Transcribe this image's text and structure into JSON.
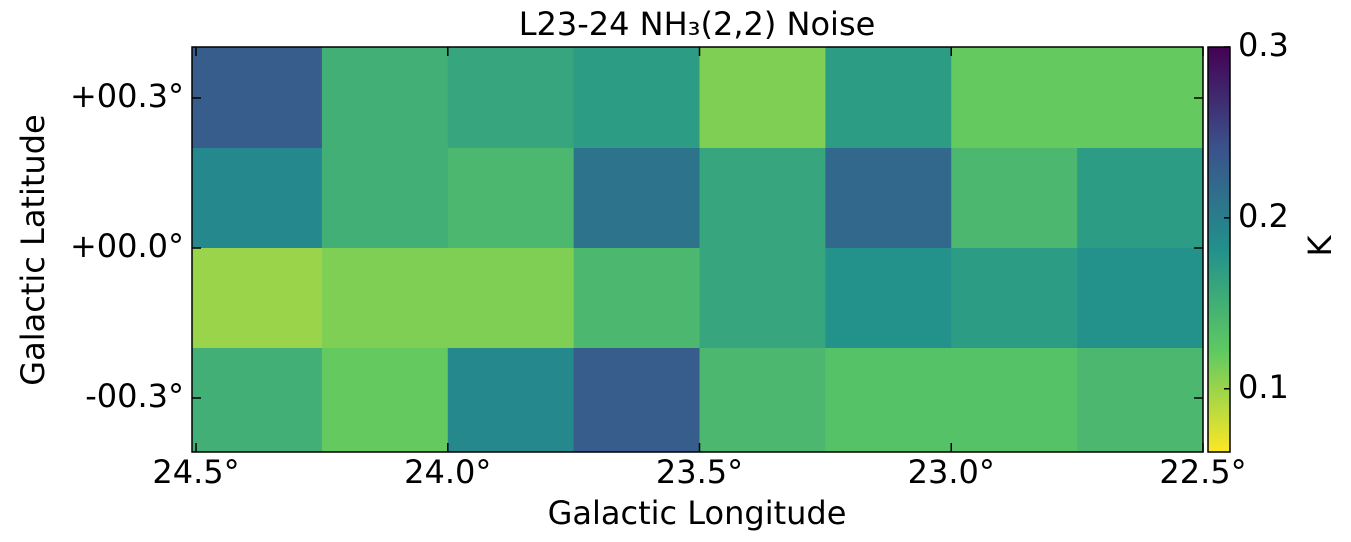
{
  "chart_data": {
    "type": "heatmap",
    "title": "L23-24 NH₃(2,2) Noise",
    "x_label": "Galactic Longitude",
    "y_label": "Galactic Latitude",
    "colorbar_label": "K",
    "x_edges": [
      24.508,
      24.25,
      24.0,
      23.75,
      23.5,
      23.25,
      23.0,
      22.75,
      22.5
    ],
    "y_edges": [
      0.402,
      0.2,
      0.0,
      -0.2,
      -0.408
    ],
    "z": [
      [
        0.23,
        0.15,
        0.16,
        0.17,
        0.11,
        0.17,
        0.12,
        0.12
      ],
      [
        0.19,
        0.15,
        0.14,
        0.21,
        0.16,
        0.22,
        0.14,
        0.17
      ],
      [
        0.1,
        0.11,
        0.11,
        0.14,
        0.16,
        0.18,
        0.17,
        0.18
      ],
      [
        0.15,
        0.12,
        0.19,
        0.23,
        0.14,
        0.13,
        0.13,
        0.14
      ]
    ],
    "xlim": [
      24.508,
      22.5
    ],
    "ylim": [
      -0.408,
      0.402
    ],
    "xticks": [
      {
        "value": 24.5,
        "label": "24.5°"
      },
      {
        "value": 24.0,
        "label": "24.0°"
      },
      {
        "value": 23.5,
        "label": "23.5°"
      },
      {
        "value": 23.0,
        "label": "23.0°"
      },
      {
        "value": 22.5,
        "label": "22.5°"
      }
    ],
    "yticks": [
      {
        "value": 0.3,
        "label": "+00.3°"
      },
      {
        "value": 0.0,
        "label": "+00.0°"
      },
      {
        "value": -0.3,
        "label": "-00.3°"
      }
    ],
    "clim": [
      0.063,
      0.3
    ],
    "cticks": [
      0.1,
      0.2,
      0.3
    ],
    "colormap": [
      "#fde725",
      "#5ec962",
      "#21918c",
      "#3b528b",
      "#440154"
    ]
  }
}
